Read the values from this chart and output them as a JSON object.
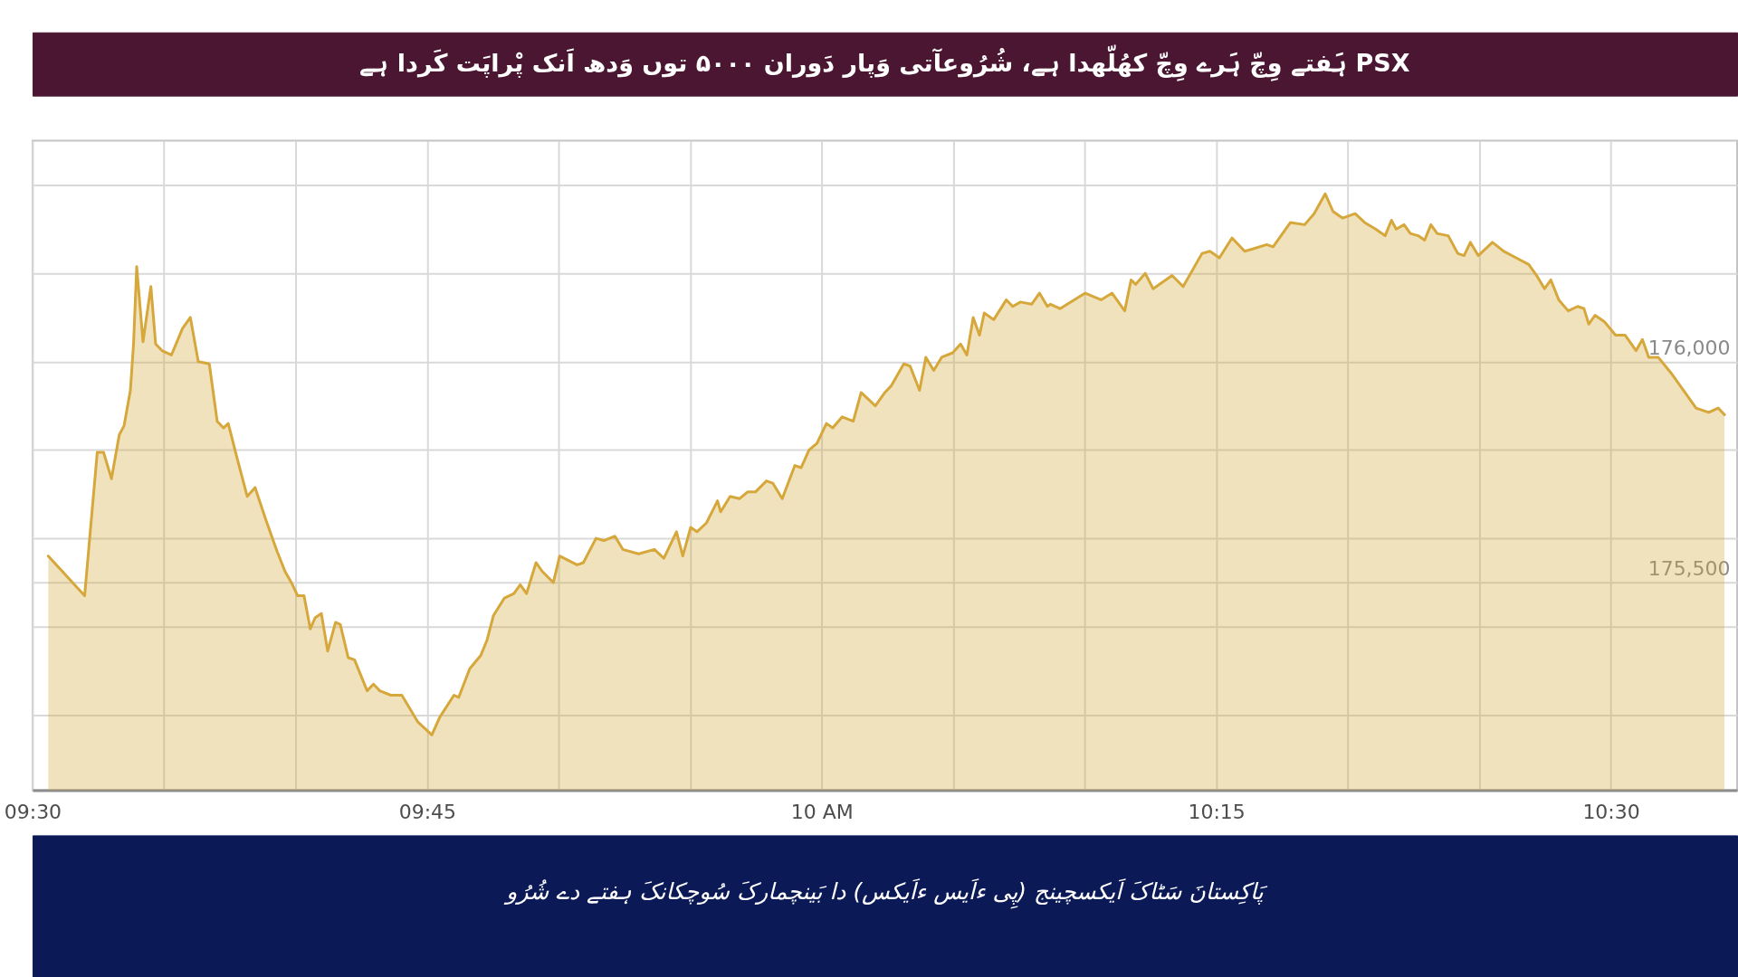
{
  "chart_data": {
    "type": "area",
    "title": "PSX ہَفتے وِچّ ہَرے وِچّ کھُلّھدا ہے، شُرُوعآتی وَپار دَوران ۵۰۰۰ توں وَدھ اَنک پْراپَت کَردا ہے",
    "annotations": [
      "پَاکِستانَ سَٹاکَ اَیکسچینج (پِی ءاَیس ءاَیکس) دا بَینچمارکَ سُوچکانکَ ہفتے دے شُرُو"
    ],
    "x": [
      9.51,
      9.533,
      9.541,
      9.545,
      9.55,
      9.555,
      9.558,
      9.562,
      9.564,
      9.566,
      9.57,
      9.575,
      9.578,
      9.582,
      9.588,
      9.595,
      9.6,
      9.605,
      9.612,
      9.617,
      9.621,
      9.624,
      9.629,
      9.636,
      9.641,
      9.648,
      9.655,
      9.66,
      9.664,
      9.668,
      9.672,
      9.676,
      9.679,
      9.683,
      9.687,
      9.692,
      9.695,
      9.7,
      9.704,
      9.712,
      9.716,
      9.72,
      9.727,
      9.734,
      9.744,
      9.753,
      9.758,
      9.767,
      9.77,
      9.777,
      9.784,
      9.788,
      9.792,
      9.799,
      9.805,
      9.809,
      9.813,
      9.819,
      9.823,
      9.83,
      9.834,
      9.845,
      9.849,
      9.857,
      9.862,
      9.869,
      9.874,
      9.884,
      9.894,
      9.9,
      9.908,
      9.912,
      9.917,
      9.921,
      9.927,
      9.934,
      9.936,
      9.942,
      9.948,
      9.953,
      9.958,
      9.965,
      9.969,
      9.975,
      9.983,
      9.987,
      9.992,
      9.997,
      10.003,
      10.007,
      10.013,
      10.02,
      10.025,
      10.034,
      10.04,
      10.044,
      10.052,
      10.056,
      10.062,
      10.066,
      10.071,
      10.076,
      10.083,
      10.088,
      10.092,
      10.096,
      10.1,
      10.103,
      10.109,
      10.117,
      10.121,
      10.126,
      10.133,
      10.138,
      10.143,
      10.145,
      10.151,
      10.16,
      10.167,
      10.177,
      10.184,
      10.192,
      10.196,
      10.199,
      10.205,
      10.21,
      10.222,
      10.229,
      10.241,
      10.246,
      10.252,
      10.26,
      10.268,
      10.273,
      10.282,
      10.286,
      10.297,
      10.306,
      10.312,
      10.319,
      10.324,
      10.33,
      10.338,
      10.344,
      10.351,
      10.357,
      10.361,
      10.364,
      10.369,
      10.373,
      10.378,
      10.382,
      10.386,
      10.39,
      10.397,
      10.403,
      10.407,
      10.411,
      10.416,
      10.425,
      10.432,
      10.44,
      10.448,
      10.453,
      10.458,
      10.462,
      10.467,
      10.473,
      10.479,
      10.483,
      10.486,
      10.49,
      10.496,
      10.503,
      10.509,
      10.516,
      10.52,
      10.524,
      10.53,
      10.538,
      10.547,
      10.554,
      10.562,
      10.568,
      10.572
    ],
    "series": [
      {
        "color": "#d6a73a",
        "values": [
          175560,
          175470,
          175795,
          175795,
          175735,
          175835,
          175855,
          175935,
          176040,
          176215,
          176045,
          176170,
          176040,
          176025,
          176015,
          176075,
          176100,
          176000,
          175995,
          175865,
          175850,
          175860,
          175790,
          175695,
          175715,
          175640,
          175570,
          175525,
          175500,
          175470,
          175470,
          175395,
          175420,
          175430,
          175345,
          175410,
          175405,
          175330,
          175325,
          175255,
          175270,
          175255,
          175245,
          175245,
          175185,
          175155,
          175195,
          175245,
          175240,
          175305,
          175335,
          175370,
          175425,
          175465,
          175475,
          175495,
          175475,
          175545,
          175525,
          175500,
          175560,
          175540,
          175545,
          175600,
          175595,
          175605,
          175575,
          175565,
          175575,
          175555,
          175615,
          175560,
          175625,
          175615,
          175635,
          175685,
          175660,
          175695,
          175690,
          175705,
          175705,
          175730,
          175725,
          175690,
          175765,
          175760,
          175800,
          175815,
          175860,
          175850,
          175875,
          175865,
          175930,
          175900,
          175930,
          175945,
          175995,
          175990,
          175935,
          176010,
          175980,
          176010,
          176020,
          176040,
          176015,
          176100,
          176060,
          176110,
          176095,
          176140,
          176125,
          176135,
          176130,
          176155,
          176125,
          176130,
          176120,
          176140,
          176155,
          176140,
          176155,
          176115,
          176185,
          176175,
          176200,
          176165,
          176195,
          176170,
          176245,
          176250,
          176235,
          176280,
          176250,
          176255,
          176265,
          176260,
          176315,
          176310,
          176335,
          176380,
          176340,
          176325,
          176335,
          176315,
          176300,
          176285,
          176320,
          176300,
          176310,
          176290,
          176285,
          176275,
          176310,
          176290,
          176285,
          176245,
          176240,
          176270,
          176240,
          176270,
          176250,
          176235,
          176220,
          176195,
          176165,
          176185,
          176140,
          176115,
          176125,
          176120,
          176085,
          176105,
          176090,
          176060,
          176060,
          176025,
          176050,
          176010,
          176010,
          175975,
          175930,
          175895,
          175885,
          175895,
          175880
        ]
      }
    ],
    "xlim": [
      9.5,
      10.58
    ],
    "xticks": [
      {
        "value": 9.5,
        "label": "09:30"
      },
      {
        "value": 9.5833,
        "label": null
      },
      {
        "value": 9.6667,
        "label": null
      },
      {
        "value": 9.75,
        "label": "09:45"
      },
      {
        "value": 9.8333,
        "label": null
      },
      {
        "value": 9.9167,
        "label": null
      },
      {
        "value": 10.0,
        "label": "10 AM"
      },
      {
        "value": 10.0833,
        "label": null
      },
      {
        "value": 10.1667,
        "label": null
      },
      {
        "value": 10.25,
        "label": "10:15"
      },
      {
        "value": 10.3333,
        "label": null
      },
      {
        "value": 10.4167,
        "label": null
      },
      {
        "value": 10.5,
        "label": "10:30"
      }
    ],
    "ylim": [
      175030,
      176500
    ],
    "yticks": [
      {
        "value": 175200,
        "label": null
      },
      {
        "value": 175400,
        "label": null
      },
      {
        "value": 175500,
        "label": "175,500"
      },
      {
        "value": 175600,
        "label": null
      },
      {
        "value": 175800,
        "label": null
      },
      {
        "value": 176000,
        "label": "176,000"
      },
      {
        "value": 176200,
        "label": null
      },
      {
        "value": 176400,
        "label": null
      }
    ],
    "grid": true
  }
}
